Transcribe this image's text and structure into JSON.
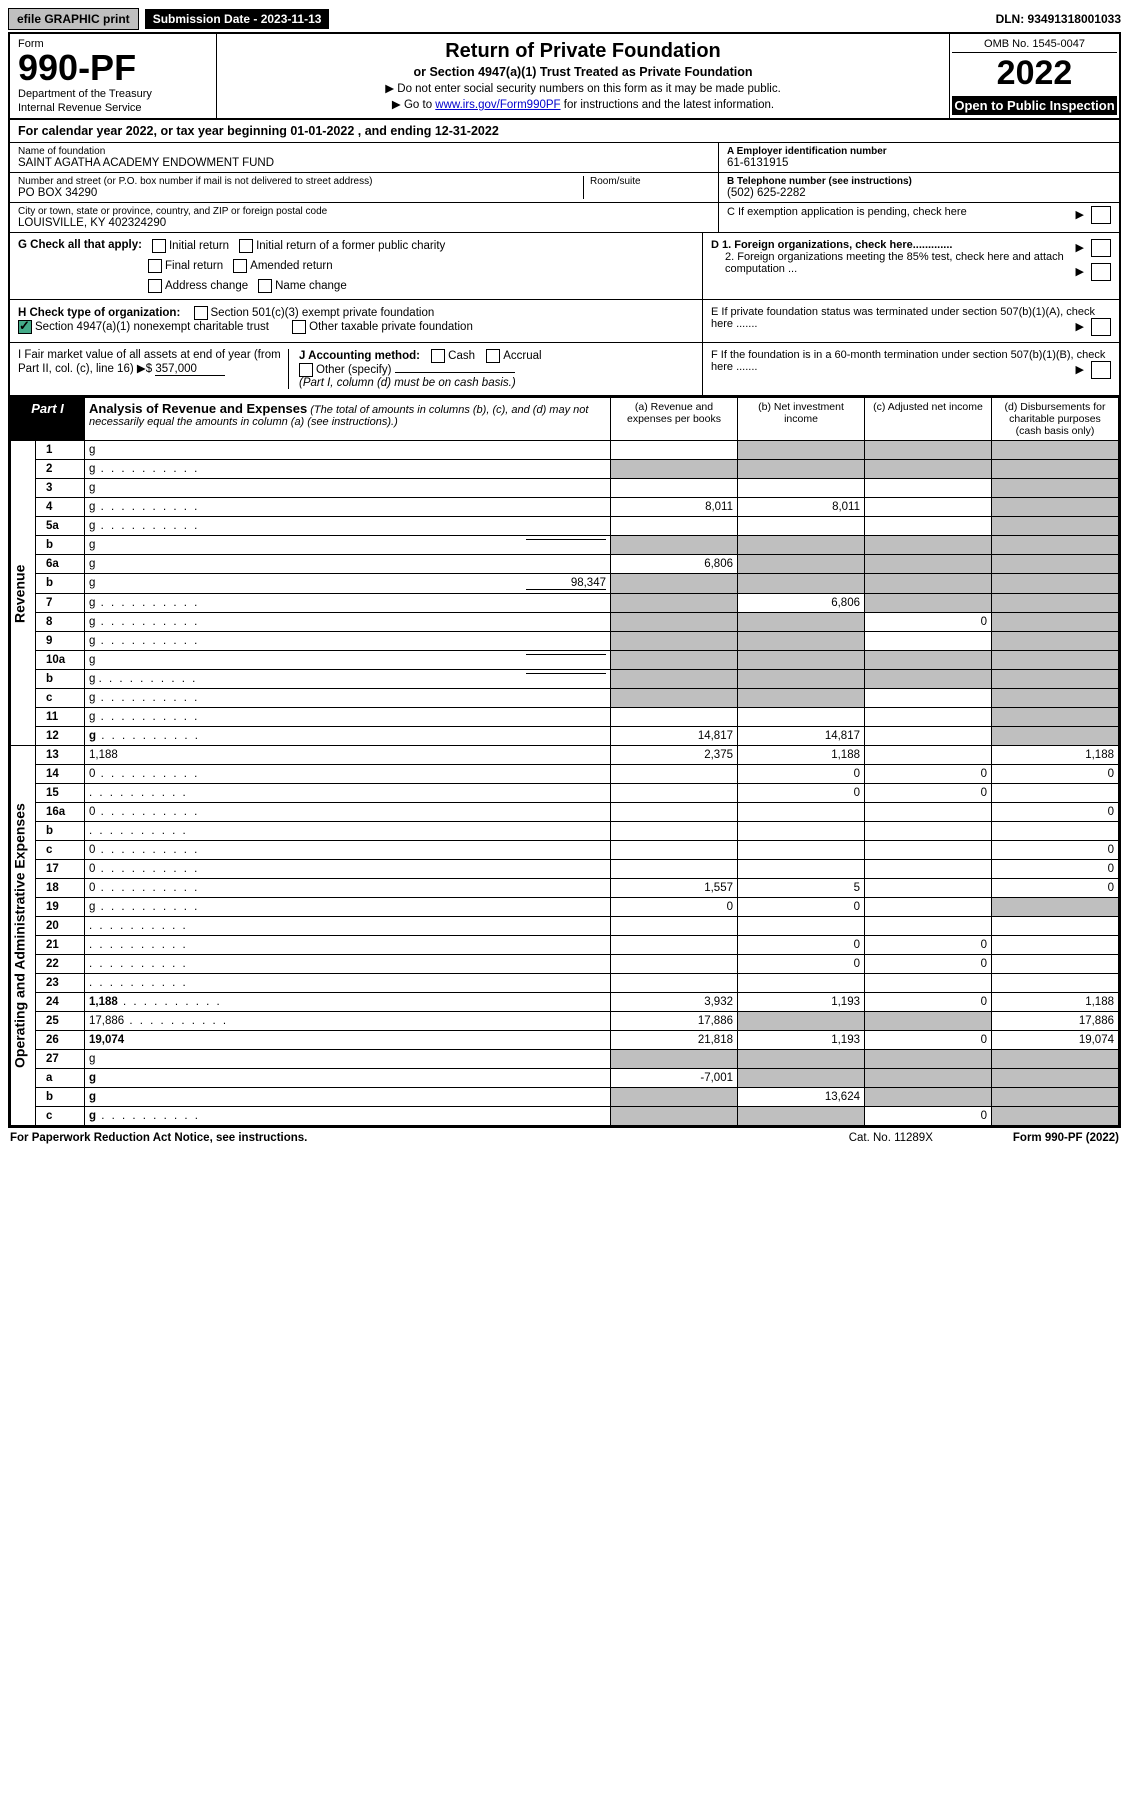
{
  "topbar": {
    "efile": "efile GRAPHIC print",
    "submission": "Submission Date - 2023-11-13",
    "dln": "DLN: 93491318001033"
  },
  "header": {
    "form_word": "Form",
    "form_num": "990-PF",
    "dept1": "Department of the Treasury",
    "dept2": "Internal Revenue Service",
    "title": "Return of Private Foundation",
    "subtitle": "or Section 4947(a)(1) Trust Treated as Private Foundation",
    "inst1": "▶ Do not enter social security numbers on this form as it may be made public.",
    "inst2_pre": "▶ Go to ",
    "inst2_link": "www.irs.gov/Form990PF",
    "inst2_post": " for instructions and the latest information.",
    "omb": "OMB No. 1545-0047",
    "year": "2022",
    "open": "Open to Public Inspection"
  },
  "cal_year": "For calendar year 2022, or tax year beginning 01-01-2022                   , and ending 12-31-2022",
  "org": {
    "name_lbl": "Name of foundation",
    "name": "SAINT AGATHA ACADEMY ENDOWMENT FUND",
    "addr_lbl": "Number and street (or P.O. box number if mail is not delivered to street address)",
    "addr": "PO BOX 34290",
    "room_lbl": "Room/suite",
    "city_lbl": "City or town, state or province, country, and ZIP or foreign postal code",
    "city": "LOUISVILLE, KY  402324290",
    "ein_lbl": "A Employer identification number",
    "ein": "61-6131915",
    "tel_lbl": "B Telephone number (see instructions)",
    "tel": "(502) 625-2282",
    "c": "C If exemption application is pending, check here",
    "d1": "D 1. Foreign organizations, check here.............",
    "d2": "2. Foreign organizations meeting the 85% test, check here and attach computation ...",
    "e": "E  If private foundation status was terminated under section 507(b)(1)(A), check here .......",
    "f": "F  If the foundation is in a 60-month termination under section 507(b)(1)(B), check here .......",
    "g": "G Check all that apply:",
    "g_opts": [
      "Initial return",
      "Initial return of a former public charity",
      "Final return",
      "Amended return",
      "Address change",
      "Name change"
    ],
    "h": "H Check type of organization:",
    "h_opts": [
      "Section 501(c)(3) exempt private foundation",
      "Section 4947(a)(1) nonexempt charitable trust",
      "Other taxable private foundation"
    ],
    "i": "I Fair market value of all assets at end of year (from Part II, col. (c), line 16) ▶$",
    "i_val": "357,000",
    "j": "J Accounting method:",
    "j_cash": "Cash",
    "j_accrual": "Accrual",
    "j_other": "Other (specify)",
    "j_note": "(Part I, column (d) must be on cash basis.)"
  },
  "part1": {
    "label": "Part I",
    "title": "Analysis of Revenue and Expenses",
    "note": "(The total of amounts in columns (b), (c), and (d) may not necessarily equal the amounts in column (a) (see instructions).)",
    "cols": {
      "a": "(a)  Revenue and expenses per books",
      "b": "(b)  Net investment income",
      "c": "(c)  Adjusted net income",
      "d": "(d)  Disbursements for charitable purposes (cash basis only)"
    }
  },
  "sections": {
    "revenue": "Revenue",
    "opex": "Operating and Administrative Expenses"
  },
  "rows": [
    {
      "n": "1",
      "d": "g",
      "a": "",
      "b": "g",
      "c": "g"
    },
    {
      "n": "2",
      "d": "g",
      "dots": true,
      "a": "g",
      "b": "g",
      "c": "g"
    },
    {
      "n": "3",
      "d": "g",
      "a": "",
      "b": "",
      "c": ""
    },
    {
      "n": "4",
      "d": "g",
      "dots": true,
      "a": "8,011",
      "b": "8,011",
      "c": ""
    },
    {
      "n": "5a",
      "d": "g",
      "dots": true,
      "a": "",
      "b": "",
      "c": ""
    },
    {
      "n": "b",
      "d": "g",
      "inline": "",
      "a": "g",
      "b": "g",
      "c": "g"
    },
    {
      "n": "6a",
      "d": "g",
      "a": "6,806",
      "b": "g",
      "c": "g"
    },
    {
      "n": "b",
      "d": "g",
      "inline": "98,347",
      "a": "g",
      "b": "g",
      "c": "g"
    },
    {
      "n": "7",
      "d": "g",
      "dots": true,
      "a": "g",
      "b": "6,806",
      "c": "g"
    },
    {
      "n": "8",
      "d": "g",
      "dots": true,
      "a": "g",
      "b": "g",
      "c": "0"
    },
    {
      "n": "9",
      "d": "g",
      "dots": true,
      "a": "g",
      "b": "g",
      "c": ""
    },
    {
      "n": "10a",
      "d": "g",
      "inline": "",
      "a": "g",
      "b": "g",
      "c": "g"
    },
    {
      "n": "b",
      "d": "g",
      "dots": true,
      "inline": "",
      "a": "g",
      "b": "g",
      "c": "g"
    },
    {
      "n": "c",
      "d": "g",
      "dots": true,
      "a": "g",
      "b": "g",
      "c": ""
    },
    {
      "n": "11",
      "d": "g",
      "dots": true,
      "a": "",
      "b": "",
      "c": ""
    },
    {
      "n": "12",
      "d": "g",
      "dots": true,
      "bold": true,
      "a": "14,817",
      "b": "14,817",
      "c": ""
    }
  ],
  "op_rows": [
    {
      "n": "13",
      "d": "1,188",
      "a": "2,375",
      "b": "1,188",
      "c": ""
    },
    {
      "n": "14",
      "d": "0",
      "dots": true,
      "a": "",
      "b": "0",
      "c": "0"
    },
    {
      "n": "15",
      "d": "",
      "dots": true,
      "a": "",
      "b": "0",
      "c": "0"
    },
    {
      "n": "16a",
      "d": "0",
      "dots": true,
      "a": "",
      "b": "",
      "c": ""
    },
    {
      "n": "b",
      "d": "",
      "dots": true,
      "a": "",
      "b": "",
      "c": ""
    },
    {
      "n": "c",
      "d": "0",
      "dots": true,
      "a": "",
      "b": "",
      "c": ""
    },
    {
      "n": "17",
      "d": "0",
      "dots": true,
      "a": "",
      "b": "",
      "c": ""
    },
    {
      "n": "18",
      "d": "0",
      "dots": true,
      "a": "1,557",
      "b": "5",
      "c": ""
    },
    {
      "n": "19",
      "d": "g",
      "dots": true,
      "a": "0",
      "b": "0",
      "c": ""
    },
    {
      "n": "20",
      "d": "",
      "dots": true,
      "a": "",
      "b": "",
      "c": ""
    },
    {
      "n": "21",
      "d": "",
      "dots": true,
      "a": "",
      "b": "0",
      "c": "0"
    },
    {
      "n": "22",
      "d": "",
      "dots": true,
      "a": "",
      "b": "0",
      "c": "0"
    },
    {
      "n": "23",
      "d": "",
      "dots": true,
      "a": "",
      "b": "",
      "c": ""
    },
    {
      "n": "24",
      "d": "1,188",
      "dots": true,
      "bold": true,
      "a": "3,932",
      "b": "1,193",
      "c": "0"
    },
    {
      "n": "25",
      "d": "17,886",
      "dots": true,
      "a": "17,886",
      "b": "g",
      "c": "g"
    },
    {
      "n": "26",
      "d": "19,074",
      "bold": true,
      "a": "21,818",
      "b": "1,193",
      "c": "0"
    },
    {
      "n": "27",
      "d": "g",
      "a": "g",
      "b": "g",
      "c": "g"
    },
    {
      "n": "a",
      "d": "g",
      "bold": true,
      "a": "-7,001",
      "b": "g",
      "c": "g"
    },
    {
      "n": "b",
      "d": "g",
      "bold": true,
      "a": "g",
      "b": "13,624",
      "c": "g"
    },
    {
      "n": "c",
      "d": "g",
      "dots": true,
      "bold": true,
      "a": "g",
      "b": "g",
      "c": "0"
    }
  ],
  "footer": {
    "left": "For Paperwork Reduction Act Notice, see instructions.",
    "mid": "Cat. No. 11289X",
    "right": "Form 990-PF (2022)"
  }
}
